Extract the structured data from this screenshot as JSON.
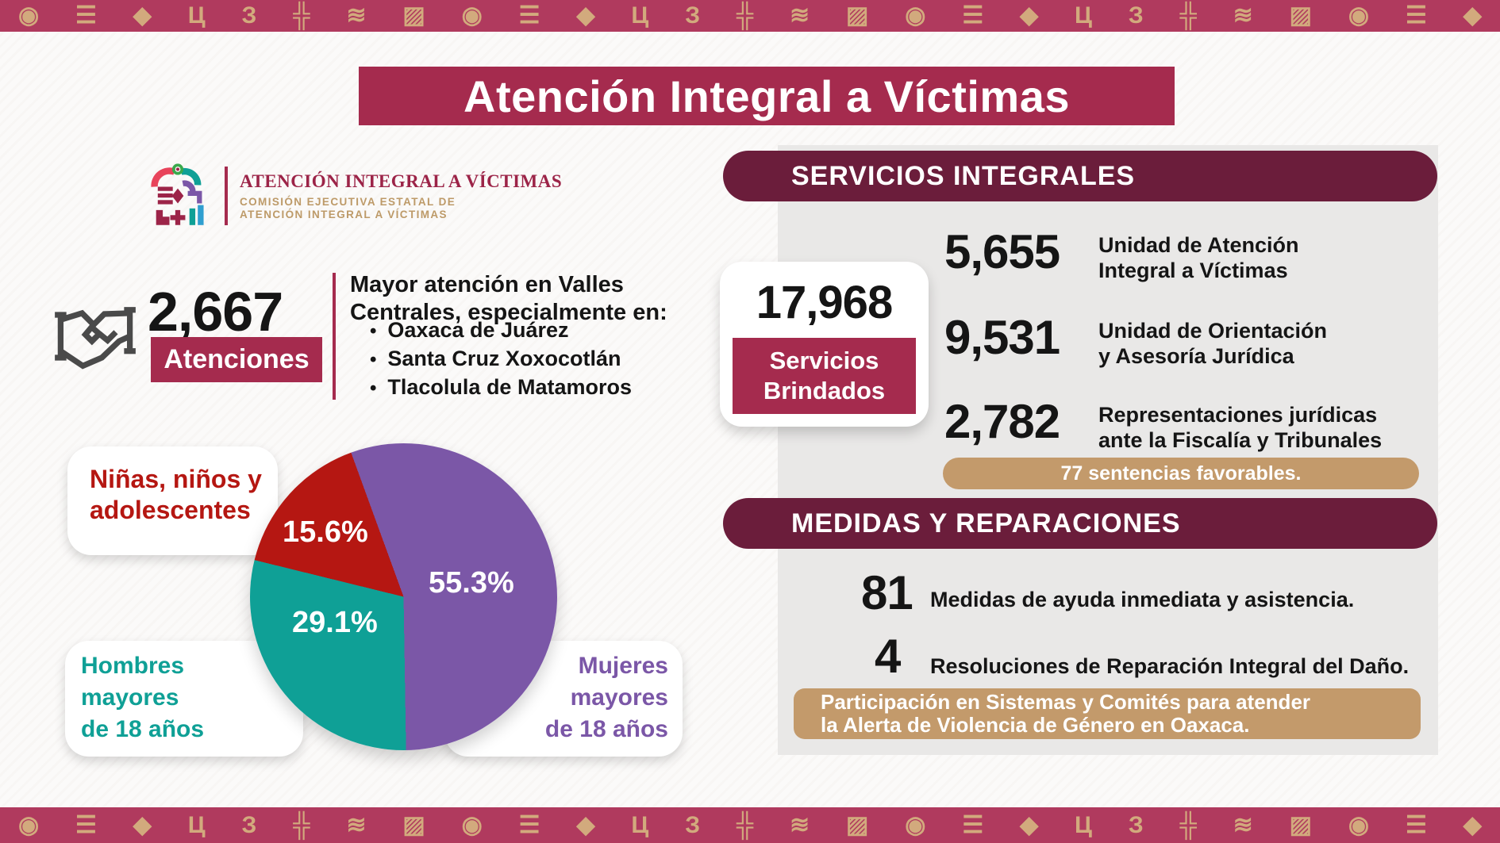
{
  "colors": {
    "maroon": "#a52b4e",
    "dark_maroon": "#6b1d3b",
    "tan": "#c39a6b",
    "tan_light": "#d2aa7d",
    "border_bg": "#b03a5e",
    "purple": "#7b57a7",
    "teal": "#0fa096",
    "red": "#b51712",
    "panel": "#e9e8e7",
    "ink": "#151515",
    "icon_gray": "#4a4a4a",
    "logo_maroon": "#9c2448",
    "logo_tan": "#bd9a68"
  },
  "border": {
    "glyphs": [
      "◉",
      "☰",
      "◆",
      "Ц",
      "З",
      "╬",
      "≋",
      "▨"
    ]
  },
  "title": "Atención Integral a Víctimas",
  "logo": {
    "name": "ATENCIÓN INTEGRAL A VÍCTIMAS",
    "org_line1": "COMISIÓN EJECUTIVA ESTATAL DE",
    "org_line2": "ATENCIÓN INTEGRAL A VÍCTIMAS"
  },
  "atenciones": {
    "value": "2,667",
    "label": "Atenciones",
    "note_line1": "Mayor atención en Valles",
    "note_line2": "Centrales, especialmente en:",
    "bullets": [
      "Oaxaca de Juárez",
      "Santa Cruz Xoxocotlán",
      "Tlacolula de Matamoros"
    ]
  },
  "chart_data": {
    "type": "pie",
    "unit": "%",
    "start_angle_deg": -20,
    "slices": [
      {
        "label": "Mujeres mayores de 18 años",
        "value": 55.3,
        "pct_text": "55.3%",
        "color": "#7b57a7"
      },
      {
        "label": "Hombres mayores de 18 años",
        "value": 29.1,
        "pct_text": "29.1%",
        "color": "#0fa096"
      },
      {
        "label": "Niñas, niños y adolescentes",
        "value": 15.6,
        "pct_text": "15.6%",
        "color": "#b51712"
      }
    ]
  },
  "callouts": {
    "ninas_line1": "Niñas, niños y",
    "ninas_line2": "adolescentes",
    "hombres_line1": "Hombres",
    "hombres_line2": "mayores",
    "hombres_line3": "de 18 años",
    "mujeres_line1": "Mujeres",
    "mujeres_line2": "mayores",
    "mujeres_line3": "de 18 años"
  },
  "servicios": {
    "header": "SERVICIOS INTEGRALES",
    "total_value": "17,968",
    "total_label_line1": "Servicios",
    "total_label_line2": "Brindados",
    "items": [
      {
        "value": "5,655",
        "line1": "Unidad de Atención",
        "line2": "Integral a Víctimas"
      },
      {
        "value": "9,531",
        "line1": "Unidad de Orientación",
        "line2": "y Asesoría Jurídica"
      },
      {
        "value": "2,782",
        "line1": "Representaciones jurídicas",
        "line2": "ante la Fiscalía y Tribunales"
      }
    ],
    "highlight": "77 sentencias favorables."
  },
  "medidas": {
    "header": "MEDIDAS Y REPARACIONES",
    "items": [
      {
        "value": "81",
        "label": "Medidas de ayuda inmediata y asistencia."
      },
      {
        "value": "4",
        "label": "Resoluciones de Reparación Integral del Daño."
      }
    ],
    "highlight_line1": "Participación en Sistemas y Comités para atender",
    "highlight_line2": "la Alerta de Violencia de Género en Oaxaca."
  }
}
